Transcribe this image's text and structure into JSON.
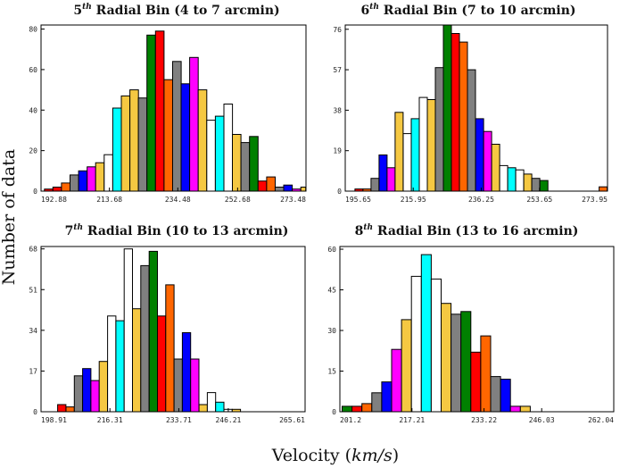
{
  "figure": {
    "ylabel": "Number of data",
    "xlabel_main": "Velocity (",
    "xlabel_unit": "km/s",
    "xlabel_close": ")"
  },
  "chart_data": [
    {
      "type": "bar",
      "title_ordinal": "5",
      "title_suffix": "th",
      "title_rest": " Radial Bin (4 to 7 arcmin)",
      "xlim": [
        192.88,
        273.48
      ],
      "ylim": [
        0,
        82
      ],
      "x_ticks": [
        "192.88",
        "213.68",
        "234.48",
        "252.68",
        "273.48"
      ],
      "y_ticks": [
        "0",
        "20",
        "40",
        "60",
        "80"
      ],
      "bins": [
        {
          "x": 193.9,
          "w": 2.6,
          "v": 1,
          "c": "#ff0000"
        },
        {
          "x": 196.5,
          "w": 2.6,
          "v": 2,
          "c": "#ff0000"
        },
        {
          "x": 199.1,
          "w": 2.6,
          "v": 4,
          "c": "#ff6600"
        },
        {
          "x": 201.7,
          "w": 2.6,
          "v": 8,
          "c": "#808080"
        },
        {
          "x": 204.3,
          "w": 2.6,
          "v": 10,
          "c": "#0000ff"
        },
        {
          "x": 206.9,
          "w": 2.6,
          "v": 12,
          "c": "#ff00ff"
        },
        {
          "x": 209.5,
          "w": 2.6,
          "v": 14,
          "c": "#f5c842"
        },
        {
          "x": 212.1,
          "w": 2.6,
          "v": 18,
          "c": "#ffffff"
        },
        {
          "x": 214.7,
          "w": 2.6,
          "v": 41,
          "c": "#00ffff"
        },
        {
          "x": 217.3,
          "w": 2.6,
          "v": 47,
          "c": "#f5c842"
        },
        {
          "x": 219.9,
          "w": 2.6,
          "v": 50,
          "c": "#f5c842"
        },
        {
          "x": 222.5,
          "w": 2.6,
          "v": 46,
          "c": "#808080"
        },
        {
          "x": 225.1,
          "w": 2.6,
          "v": 77,
          "c": "#008000"
        },
        {
          "x": 227.7,
          "w": 2.6,
          "v": 79,
          "c": "#ff0000"
        },
        {
          "x": 230.3,
          "w": 2.6,
          "v": 55,
          "c": "#ff6600"
        },
        {
          "x": 232.9,
          "w": 2.6,
          "v": 64,
          "c": "#808080"
        },
        {
          "x": 235.5,
          "w": 2.6,
          "v": 53,
          "c": "#0000ff"
        },
        {
          "x": 238.1,
          "w": 2.6,
          "v": 66,
          "c": "#ff00ff"
        },
        {
          "x": 240.7,
          "w": 2.6,
          "v": 50,
          "c": "#f5c842"
        },
        {
          "x": 243.3,
          "w": 2.6,
          "v": 35,
          "c": "#ffffff"
        },
        {
          "x": 245.9,
          "w": 2.6,
          "v": 37,
          "c": "#00ffff"
        },
        {
          "x": 248.5,
          "w": 2.6,
          "v": 43,
          "c": "#ffffff"
        },
        {
          "x": 251.1,
          "w": 2.6,
          "v": 28,
          "c": "#f5c842"
        },
        {
          "x": 253.7,
          "w": 2.6,
          "v": 24,
          "c": "#808080"
        },
        {
          "x": 256.3,
          "w": 2.6,
          "v": 27,
          "c": "#008000"
        },
        {
          "x": 258.9,
          "w": 2.6,
          "v": 5,
          "c": "#ff0000"
        },
        {
          "x": 261.5,
          "w": 2.6,
          "v": 7,
          "c": "#ff6600"
        },
        {
          "x": 264.1,
          "w": 2.6,
          "v": 2,
          "c": "#808080"
        },
        {
          "x": 266.7,
          "w": 2.6,
          "v": 3,
          "c": "#0000ff"
        },
        {
          "x": 269.3,
          "w": 2.6,
          "v": 1,
          "c": "#ff00ff"
        },
        {
          "x": 271.9,
          "w": 1.5,
          "v": 2,
          "c": "#f5c842"
        }
      ]
    },
    {
      "type": "bar",
      "title_ordinal": "6",
      "title_suffix": "th",
      "title_rest": " Radial Bin (7 to 10 arcmin)",
      "xlim": [
        195.65,
        273.95
      ],
      "ylim": [
        0,
        78
      ],
      "x_ticks": [
        "195.65",
        "215.95",
        "236.25",
        "253.65",
        "273.95"
      ],
      "y_ticks": [
        "0",
        "19",
        "38",
        "57",
        "76"
      ],
      "bins": [
        {
          "x": 198.55,
          "w": 2.4,
          "v": 1,
          "c": "#ff0000"
        },
        {
          "x": 200.95,
          "w": 2.4,
          "v": 1,
          "c": "#ff6600"
        },
        {
          "x": 203.35,
          "w": 2.4,
          "v": 6,
          "c": "#808080"
        },
        {
          "x": 205.75,
          "w": 2.4,
          "v": 17,
          "c": "#0000ff"
        },
        {
          "x": 208.15,
          "w": 2.4,
          "v": 11,
          "c": "#ff00ff"
        },
        {
          "x": 210.55,
          "w": 2.4,
          "v": 37,
          "c": "#f5c842"
        },
        {
          "x": 212.95,
          "w": 2.4,
          "v": 27,
          "c": "#ffffff"
        },
        {
          "x": 215.35,
          "w": 2.4,
          "v": 34,
          "c": "#00ffff"
        },
        {
          "x": 217.75,
          "w": 2.4,
          "v": 44,
          "c": "#ffffff"
        },
        {
          "x": 220.15,
          "w": 2.4,
          "v": 43,
          "c": "#f5c842"
        },
        {
          "x": 222.55,
          "w": 2.4,
          "v": 58,
          "c": "#808080"
        },
        {
          "x": 224.95,
          "w": 2.4,
          "v": 78,
          "c": "#008000"
        },
        {
          "x": 227.35,
          "w": 2.4,
          "v": 74,
          "c": "#ff0000"
        },
        {
          "x": 229.75,
          "w": 2.4,
          "v": 70,
          "c": "#ff6600"
        },
        {
          "x": 232.15,
          "w": 2.4,
          "v": 57,
          "c": "#808080"
        },
        {
          "x": 234.55,
          "w": 2.4,
          "v": 34,
          "c": "#0000ff"
        },
        {
          "x": 236.95,
          "w": 2.4,
          "v": 28,
          "c": "#ff00ff"
        },
        {
          "x": 239.35,
          "w": 2.4,
          "v": 22,
          "c": "#f5c842"
        },
        {
          "x": 241.75,
          "w": 2.4,
          "v": 12,
          "c": "#ffffff"
        },
        {
          "x": 244.15,
          "w": 2.4,
          "v": 11,
          "c": "#00ffff"
        },
        {
          "x": 246.55,
          "w": 2.4,
          "v": 10,
          "c": "#ffffff"
        },
        {
          "x": 248.95,
          "w": 2.4,
          "v": 8,
          "c": "#f5c842"
        },
        {
          "x": 251.35,
          "w": 2.4,
          "v": 6,
          "c": "#808080"
        },
        {
          "x": 253.75,
          "w": 2.4,
          "v": 5,
          "c": "#008000"
        },
        {
          "x": 271.45,
          "w": 2.4,
          "v": 2,
          "c": "#ff6600"
        }
      ]
    },
    {
      "type": "bar",
      "title_ordinal": "7",
      "title_suffix": "th",
      "title_rest": " Radial Bin (10 to 13 arcmin)",
      "xlim": [
        198.91,
        265.61
      ],
      "ylim": [
        0,
        69
      ],
      "x_ticks": [
        "198.91",
        "216.31",
        "233.71",
        "246.21",
        "265.61"
      ],
      "y_ticks": [
        "0",
        "17",
        "34",
        "51",
        "68"
      ],
      "bins": [
        {
          "x": 203.11,
          "w": 2.1,
          "v": 3,
          "c": "#ff0000"
        },
        {
          "x": 205.21,
          "w": 2.1,
          "v": 2,
          "c": "#ff6600"
        },
        {
          "x": 207.31,
          "w": 2.1,
          "v": 15,
          "c": "#808080"
        },
        {
          "x": 209.41,
          "w": 2.1,
          "v": 18,
          "c": "#0000ff"
        },
        {
          "x": 211.51,
          "w": 2.1,
          "v": 13,
          "c": "#ff00ff"
        },
        {
          "x": 213.61,
          "w": 2.1,
          "v": 21,
          "c": "#f5c842"
        },
        {
          "x": 215.71,
          "w": 2.1,
          "v": 40,
          "c": "#ffffff"
        },
        {
          "x": 217.81,
          "w": 2.1,
          "v": 38,
          "c": "#00ffff"
        },
        {
          "x": 219.91,
          "w": 2.1,
          "v": 68,
          "c": "#ffffff"
        },
        {
          "x": 222.01,
          "w": 2.1,
          "v": 43,
          "c": "#f5c842"
        },
        {
          "x": 224.11,
          "w": 2.1,
          "v": 61,
          "c": "#808080"
        },
        {
          "x": 226.21,
          "w": 2.1,
          "v": 67,
          "c": "#008000"
        },
        {
          "x": 228.31,
          "w": 2.1,
          "v": 40,
          "c": "#ff0000"
        },
        {
          "x": 230.41,
          "w": 2.1,
          "v": 53,
          "c": "#ff6600"
        },
        {
          "x": 232.51,
          "w": 2.1,
          "v": 22,
          "c": "#808080"
        },
        {
          "x": 234.61,
          "w": 2.1,
          "v": 33,
          "c": "#0000ff"
        },
        {
          "x": 236.71,
          "w": 2.1,
          "v": 22,
          "c": "#ff00ff"
        },
        {
          "x": 238.81,
          "w": 2.1,
          "v": 3,
          "c": "#f5c842"
        },
        {
          "x": 240.91,
          "w": 2.1,
          "v": 8,
          "c": "#ffffff"
        },
        {
          "x": 243.01,
          "w": 2.1,
          "v": 4,
          "c": "#00ffff"
        },
        {
          "x": 245.11,
          "w": 2.1,
          "v": 1,
          "c": "#ffffff"
        },
        {
          "x": 247.21,
          "w": 2.1,
          "v": 1,
          "c": "#f5c842"
        }
      ]
    },
    {
      "type": "bar",
      "title_ordinal": "8",
      "title_suffix": "th",
      "title_rest": " Radial Bin (13 to 16 arcmin)",
      "xlim": [
        201.2,
        262.04
      ],
      "ylim": [
        0,
        61
      ],
      "x_ticks": [
        "201.2",
        "217.21",
        "233.22",
        "246.03",
        "262.04"
      ],
      "y_ticks": [
        "0",
        "15",
        "30",
        "45",
        "60"
      ],
      "bins": [
        {
          "x": 201.7,
          "w": 2.2,
          "v": 2,
          "c": "#008000"
        },
        {
          "x": 203.9,
          "w": 2.2,
          "v": 2,
          "c": "#ff0000"
        },
        {
          "x": 206.1,
          "w": 2.2,
          "v": 3,
          "c": "#ff6600"
        },
        {
          "x": 208.3,
          "w": 2.2,
          "v": 7,
          "c": "#808080"
        },
        {
          "x": 210.5,
          "w": 2.2,
          "v": 11,
          "c": "#0000ff"
        },
        {
          "x": 212.7,
          "w": 2.2,
          "v": 23,
          "c": "#ff00ff"
        },
        {
          "x": 214.9,
          "w": 2.2,
          "v": 34,
          "c": "#f5c842"
        },
        {
          "x": 217.1,
          "w": 2.2,
          "v": 50,
          "c": "#ffffff"
        },
        {
          "x": 219.3,
          "w": 2.2,
          "v": 58,
          "c": "#00ffff"
        },
        {
          "x": 221.5,
          "w": 2.2,
          "v": 49,
          "c": "#ffffff"
        },
        {
          "x": 223.7,
          "w": 2.2,
          "v": 40,
          "c": "#f5c842"
        },
        {
          "x": 225.9,
          "w": 2.2,
          "v": 36,
          "c": "#808080"
        },
        {
          "x": 228.1,
          "w": 2.2,
          "v": 37,
          "c": "#008000"
        },
        {
          "x": 230.3,
          "w": 2.2,
          "v": 22,
          "c": "#ff0000"
        },
        {
          "x": 232.5,
          "w": 2.2,
          "v": 28,
          "c": "#ff6600"
        },
        {
          "x": 234.7,
          "w": 2.2,
          "v": 13,
          "c": "#808080"
        },
        {
          "x": 236.9,
          "w": 2.2,
          "v": 12,
          "c": "#0000ff"
        },
        {
          "x": 239.1,
          "w": 2.2,
          "v": 2,
          "c": "#ff00ff"
        },
        {
          "x": 241.3,
          "w": 2.2,
          "v": 2,
          "c": "#f5c842"
        }
      ]
    }
  ]
}
